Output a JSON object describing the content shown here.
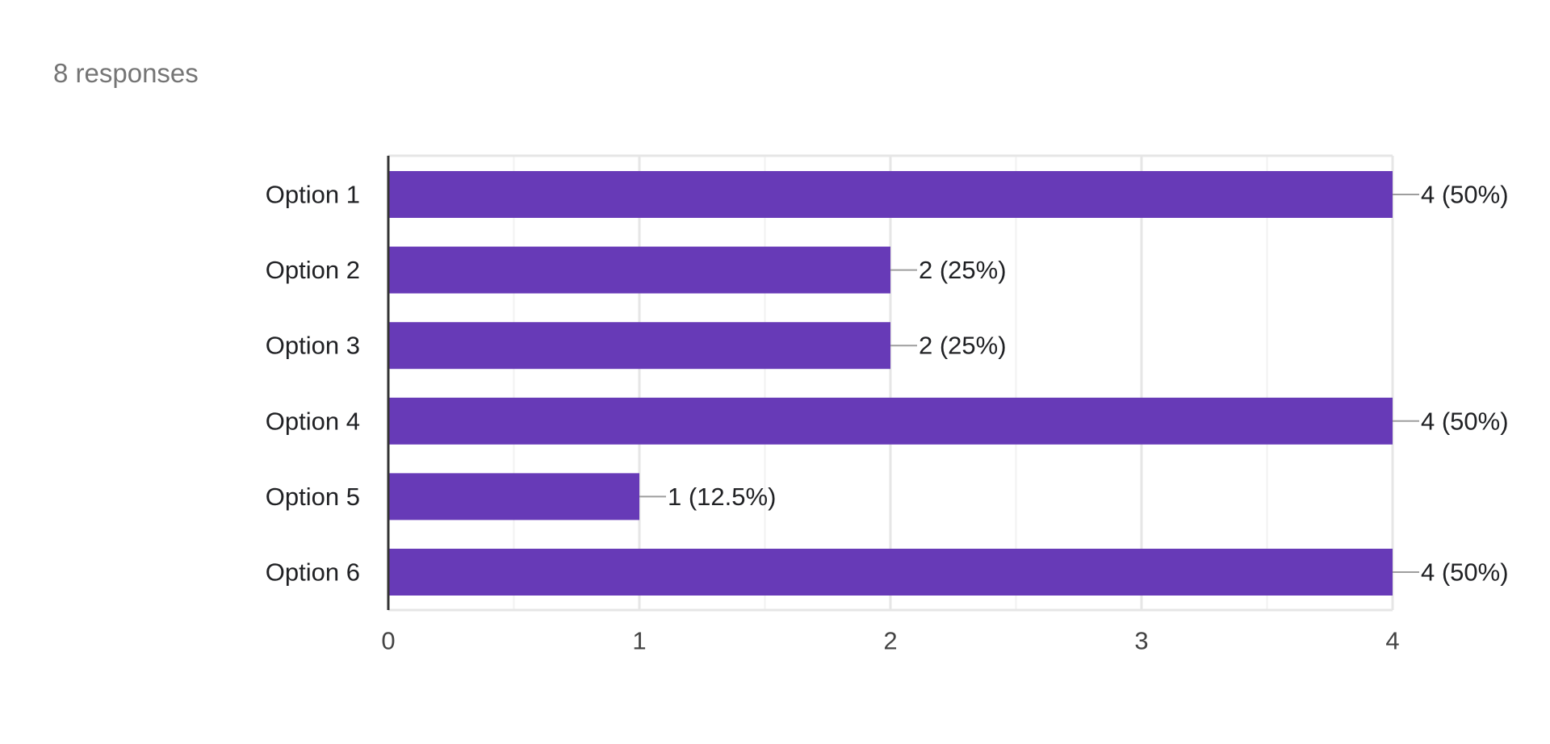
{
  "summary": {
    "responses_text": "8 responses"
  },
  "colors": {
    "bar": "#673ab7",
    "grid_major": "#e6e6e6",
    "grid_minor": "#f2f2f2",
    "axis": "#333333",
    "leader": "#9e9e9e"
  },
  "chart_data": {
    "type": "bar",
    "orientation": "horizontal",
    "categories": [
      "Option 1",
      "Option 2",
      "Option 3",
      "Option 4",
      "Option 5",
      "Option 6"
    ],
    "values": [
      4,
      2,
      2,
      4,
      1,
      4
    ],
    "data_labels": [
      "4 (50%)",
      "2 (25%)",
      "2 (25%)",
      "4 (50%)",
      "1 (12.5%)",
      "4 (50%)"
    ],
    "xlim": [
      0,
      4
    ],
    "xticks": [
      0,
      1,
      2,
      3,
      4
    ],
    "title": "",
    "xlabel": "",
    "ylabel": "",
    "grid": true
  }
}
